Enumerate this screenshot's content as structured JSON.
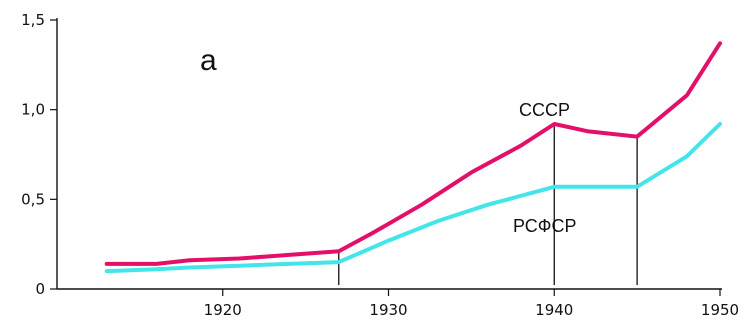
{
  "chart_data": {
    "type": "line",
    "title": "",
    "panel_label": "а",
    "xlabel": "",
    "ylabel": "",
    "xlim": [
      1910,
      1950
    ],
    "ylim": [
      0,
      1.5
    ],
    "x_ticks": [
      "1920",
      "1930",
      "1940",
      "1950"
    ],
    "y_ticks": [
      "0",
      "0,5",
      "1,0",
      "1,5"
    ],
    "grid": false,
    "legend": "none",
    "series": [
      {
        "name": "СССР",
        "color": "#e3106a",
        "x": [
          1913,
          1916,
          1918,
          1921,
          1924,
          1927,
          1929,
          1932,
          1935,
          1938,
          1940,
          1942,
          1945,
          1948,
          1950
        ],
        "y": [
          0.14,
          0.14,
          0.16,
          0.17,
          0.19,
          0.21,
          0.31,
          0.47,
          0.65,
          0.8,
          0.92,
          0.88,
          0.85,
          1.08,
          1.37
        ]
      },
      {
        "name": "РСФСР",
        "color": "#43e4ea",
        "x": [
          1913,
          1916,
          1918,
          1921,
          1924,
          1927,
          1930,
          1933,
          1936,
          1940,
          1943,
          1945,
          1948,
          1950
        ],
        "y": [
          0.1,
          0.11,
          0.12,
          0.13,
          0.14,
          0.15,
          0.27,
          0.38,
          0.47,
          0.57,
          0.57,
          0.57,
          0.74,
          0.92
        ]
      }
    ],
    "period_markers": [
      1927,
      1940,
      1945
    ]
  }
}
